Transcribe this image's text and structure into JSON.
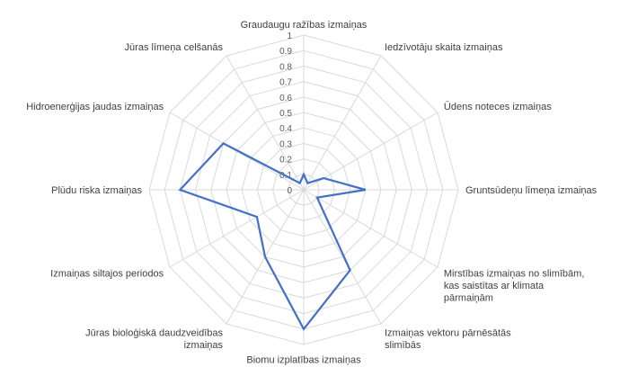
{
  "chart_data": {
    "type": "radar",
    "categories": [
      [
        "Graudaugu ražības izmaiņas"
      ],
      [
        "Iedzīvotāju skaita izmaiņas"
      ],
      [
        "Ūdens noteces izmaiņas"
      ],
      [
        "Gruntsūdeņu līmeņa izmaiņas"
      ],
      [
        "Mirstības izmaiņas no slimībām,",
        "kas saistītas ar klimata",
        "pārmaiņām"
      ],
      [
        "Izmaiņas vektoru pārnēsātās",
        "slimībās"
      ],
      [
        "Biomu izplatības izmaiņas"
      ],
      [
        "Jūras bioloģiskā daudzveidības",
        "izmaiņas"
      ],
      [
        "Izmaiņas siltajos periodos"
      ],
      [
        "Plūdu riska izmaiņas"
      ],
      [
        "Hidroenerģijas jaudas izmaiņas"
      ],
      [
        "Jūras līmeņa celšanās"
      ]
    ],
    "series": [
      {
        "values": [
          0.1,
          0.05,
          0.15,
          0.4,
          0.1,
          0.6,
          0.9,
          0.5,
          0.35,
          0.8,
          0.6,
          0.05
        ]
      }
    ],
    "ylim": [
      0,
      1
    ],
    "ticks": [
      "0",
      "0.1",
      "0.2",
      "0.3",
      "0.4",
      "0.5",
      "0.6",
      "0.7",
      "0.8",
      "0.9",
      "1"
    ],
    "grid": true,
    "colors": {
      "series": "#4472c4",
      "grid": "#d9d9d9"
    }
  }
}
